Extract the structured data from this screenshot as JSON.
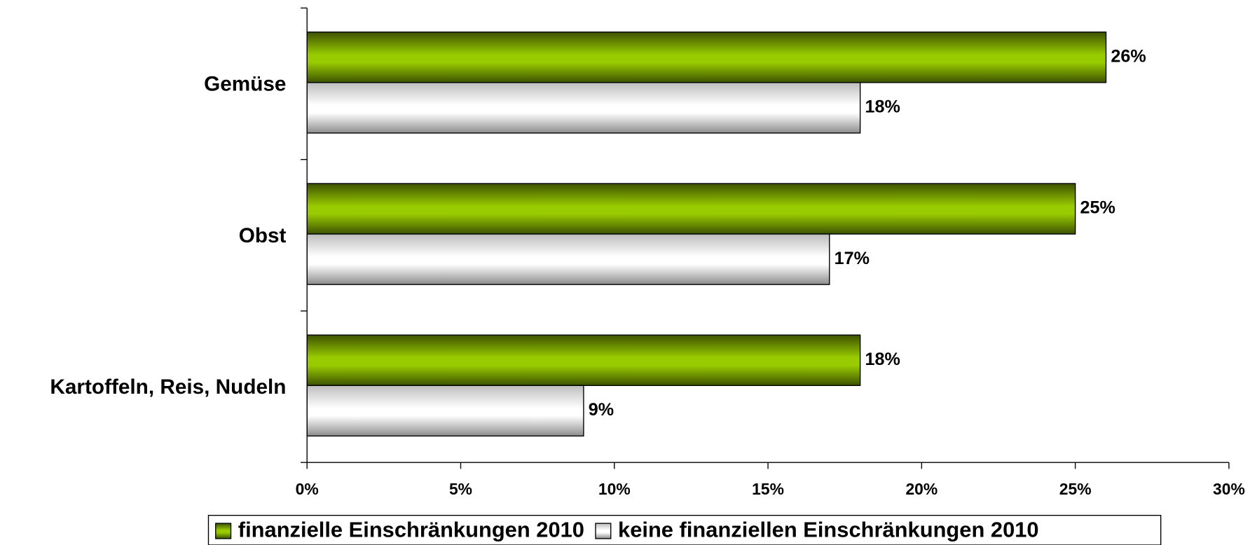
{
  "chart_data": {
    "type": "barh",
    "categories": [
      "Gemüse",
      "Obst",
      "Kartoffeln, Reis, Nudeln"
    ],
    "series": [
      {
        "name": "finanzielle Einschränkungen 2010",
        "color": "#99cc00",
        "values": [
          26,
          25,
          18
        ],
        "value_labels": [
          "26%",
          "25%",
          "18%"
        ]
      },
      {
        "name": "keine finanziellen Einschränkungen 2010",
        "color": "#d9d9d9",
        "values": [
          18,
          17,
          9
        ],
        "value_labels": [
          "18%",
          "17%",
          "9%"
        ]
      }
    ],
    "xlim": [
      0,
      30
    ],
    "xticks": [
      {
        "value": 0,
        "label": "0%"
      },
      {
        "value": 5,
        "label": "5%"
      },
      {
        "value": 10,
        "label": "10%"
      },
      {
        "value": 15,
        "label": "15%"
      },
      {
        "value": 20,
        "label": "20%"
      },
      {
        "value": 25,
        "label": "25%"
      },
      {
        "value": 30,
        "label": "30%"
      }
    ],
    "legend": "bottom"
  }
}
